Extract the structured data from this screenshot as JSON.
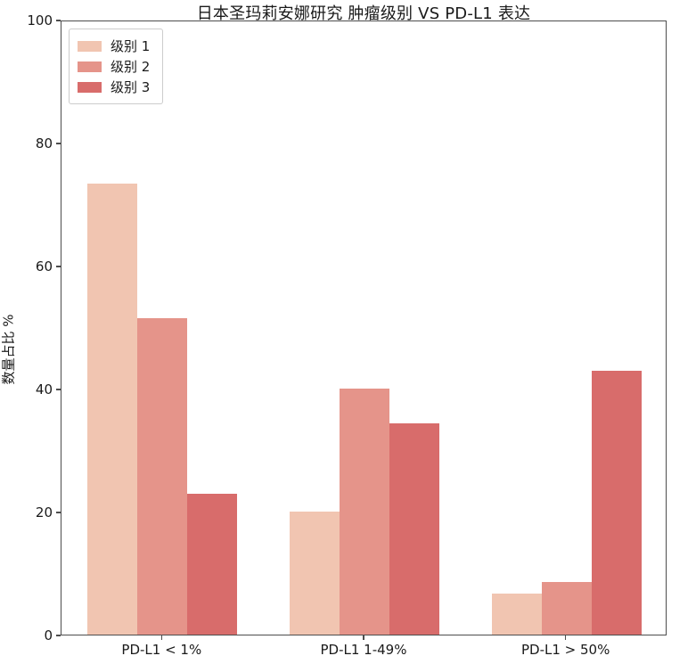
{
  "chart_data": {
    "type": "bar",
    "title": "日本圣玛莉安娜研究 肿瘤级别 VS PD-L1 表达",
    "xlabel": "",
    "ylabel": "数量占比 %",
    "categories": [
      "PD-L1 < 1%",
      "PD-L1 1-49%",
      "PD-L1 > 50%"
    ],
    "series": [
      {
        "name": "级别 1",
        "color": "#F1C5B1",
        "values": [
          73.3,
          20.0,
          6.7
        ]
      },
      {
        "name": "级别 2",
        "color": "#E5948A",
        "values": [
          51.4,
          40.0,
          8.6
        ]
      },
      {
        "name": "级别 3",
        "color": "#D86C6B",
        "values": [
          22.9,
          34.3,
          42.9
        ]
      }
    ],
    "ylim": [
      0,
      100
    ],
    "yticks": [
      0,
      20,
      40,
      60,
      80,
      100
    ],
    "legend_position": "upper-left",
    "grid": false,
    "axis_color": "#4d4d4d",
    "background_color": "#ffffff"
  }
}
